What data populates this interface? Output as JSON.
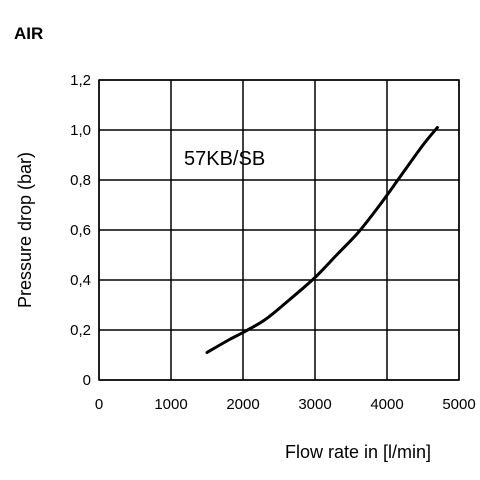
{
  "chart_data": {
    "type": "line",
    "title": "AIR",
    "xlabel": "Flow rate in [l/min]",
    "ylabel": "Pressure drop (bar)",
    "xlim": [
      0,
      5000
    ],
    "ylim": [
      0,
      1.2
    ],
    "x_ticks": [
      0,
      1000,
      2000,
      3000,
      4000,
      5000
    ],
    "y_ticks": [
      0,
      0.2,
      0.4,
      0.6,
      0.8,
      1.0,
      1.2
    ],
    "x_tick_labels": [
      "0",
      "1000",
      "2000",
      "3000",
      "4000",
      "5000"
    ],
    "y_tick_labels": [
      "0",
      "0,2",
      "0,4",
      "0,6",
      "0,8",
      "1,0",
      "1,2"
    ],
    "grid": true,
    "annotation": "57KB/SB",
    "series": [
      {
        "x": [
          1500,
          1800,
          2000,
          2300,
          2600,
          3000,
          3300,
          3600,
          3900,
          4200,
          4500,
          4700
        ],
        "y": [
          0.11,
          0.16,
          0.19,
          0.24,
          0.31,
          0.41,
          0.5,
          0.59,
          0.7,
          0.82,
          0.94,
          1.01
        ]
      }
    ],
    "colors": {
      "line": "#000000",
      "grid": "#000000",
      "background": "#ffffff"
    }
  }
}
